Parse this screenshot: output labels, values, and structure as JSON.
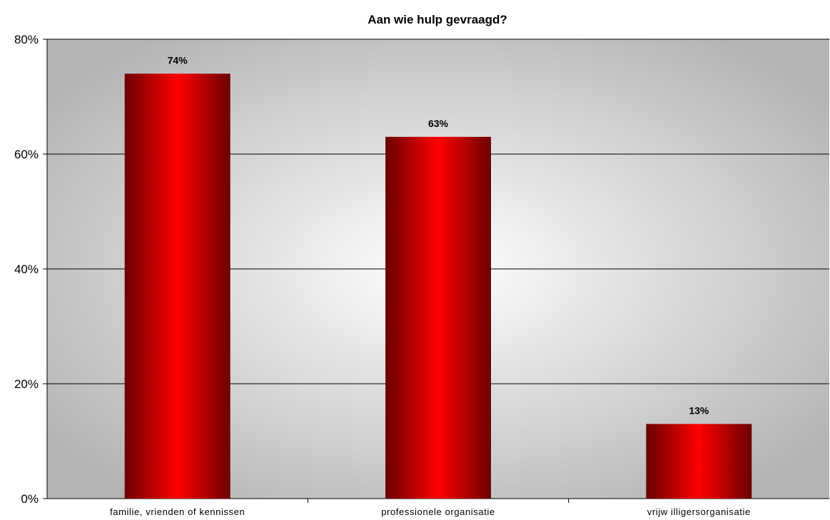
{
  "chart_data": {
    "type": "bar",
    "title": "Aan wie hulp gevraagd?",
    "xlabel": "",
    "ylabel": "",
    "categories": [
      "familie, vrienden of kennissen",
      "professionele organisatie",
      "vrijw illigersorganisatie"
    ],
    "values": [
      74,
      63,
      13
    ],
    "value_labels": [
      "74%",
      "63%",
      "13%"
    ],
    "ylim": [
      0,
      80
    ],
    "yticks": [
      0,
      20,
      40,
      60,
      80
    ],
    "ytick_labels": [
      "0%",
      "20%",
      "40%",
      "60%",
      "80%"
    ],
    "grid": true,
    "legend": "none",
    "colors": {
      "bar_center": "#ff0000",
      "bar_edge": "#6b0000",
      "plot_bg_center": "#ffffff",
      "plot_bg_edge": "#b4b4b4",
      "gridline": "#000000"
    }
  }
}
